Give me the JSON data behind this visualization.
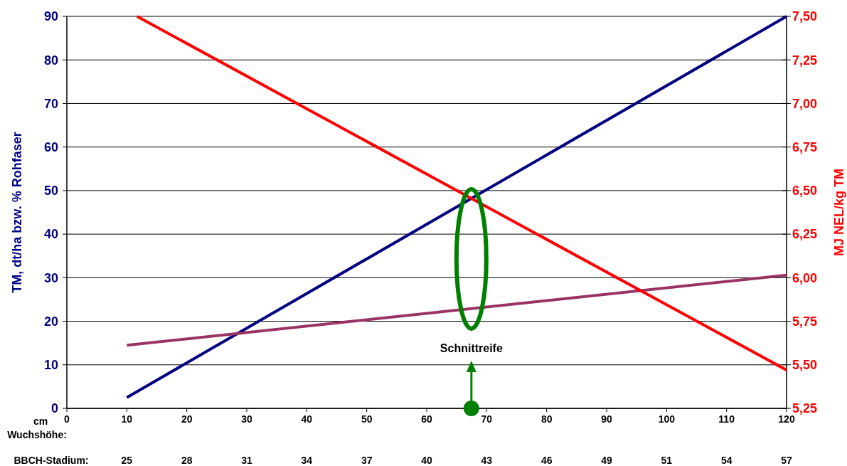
{
  "chart_data": {
    "type": "line",
    "xlabel": "Wuchshöhe:",
    "ylabel": "TM, dt/ha bzw. % Rohfaser",
    "y2label": "MJ NEL/kg TM",
    "xlim": [
      0,
      120
    ],
    "xticks": [
      0,
      10,
      20,
      30,
      40,
      50,
      60,
      70,
      80,
      90,
      100,
      110,
      120
    ],
    "ylim": [
      0,
      90
    ],
    "yticks": [
      0,
      10,
      20,
      30,
      40,
      50,
      60,
      70,
      80,
      90
    ],
    "y2lim": [
      5.25,
      7.5
    ],
    "y2ticks": [
      {
        "value": 5.25,
        "label": "5,25"
      },
      {
        "value": 5.5,
        "label": "5,50"
      },
      {
        "value": 5.75,
        "label": "5,75"
      },
      {
        "value": 6,
        "label": "6,00"
      },
      {
        "value": 6.25,
        "label": "6,25"
      },
      {
        "value": 6.5,
        "label": "6,50"
      },
      {
        "value": 6.75,
        "label": "6,75"
      },
      {
        "value": 7,
        "label": "7,00"
      },
      {
        "value": 7.25,
        "label": "7,25"
      },
      {
        "value": 7.5,
        "label": "7,50"
      }
    ],
    "series": [
      {
        "color": "#000080",
        "x": [
          10,
          120
        ],
        "values": [
          2.5,
          90
        ]
      },
      {
        "color": "#993366",
        "x": [
          10,
          120
        ],
        "values": [
          14.5,
          30.6
        ]
      },
      {
        "color": "#ff0000",
        "x": [
          11.7,
          120
        ],
        "values": [
          7.5,
          5.47
        ],
        "axis": "y2"
      }
    ],
    "annotations": [
      "Schnittreife",
      "cm",
      "BBCH-Stadium:",
      "25",
      "28",
      "31",
      "34",
      "37",
      "40",
      "43",
      "46",
      "49",
      "51",
      "54",
      "57"
    ],
    "grid": "y",
    "marker": "none",
    "line_style": "solid"
  }
}
